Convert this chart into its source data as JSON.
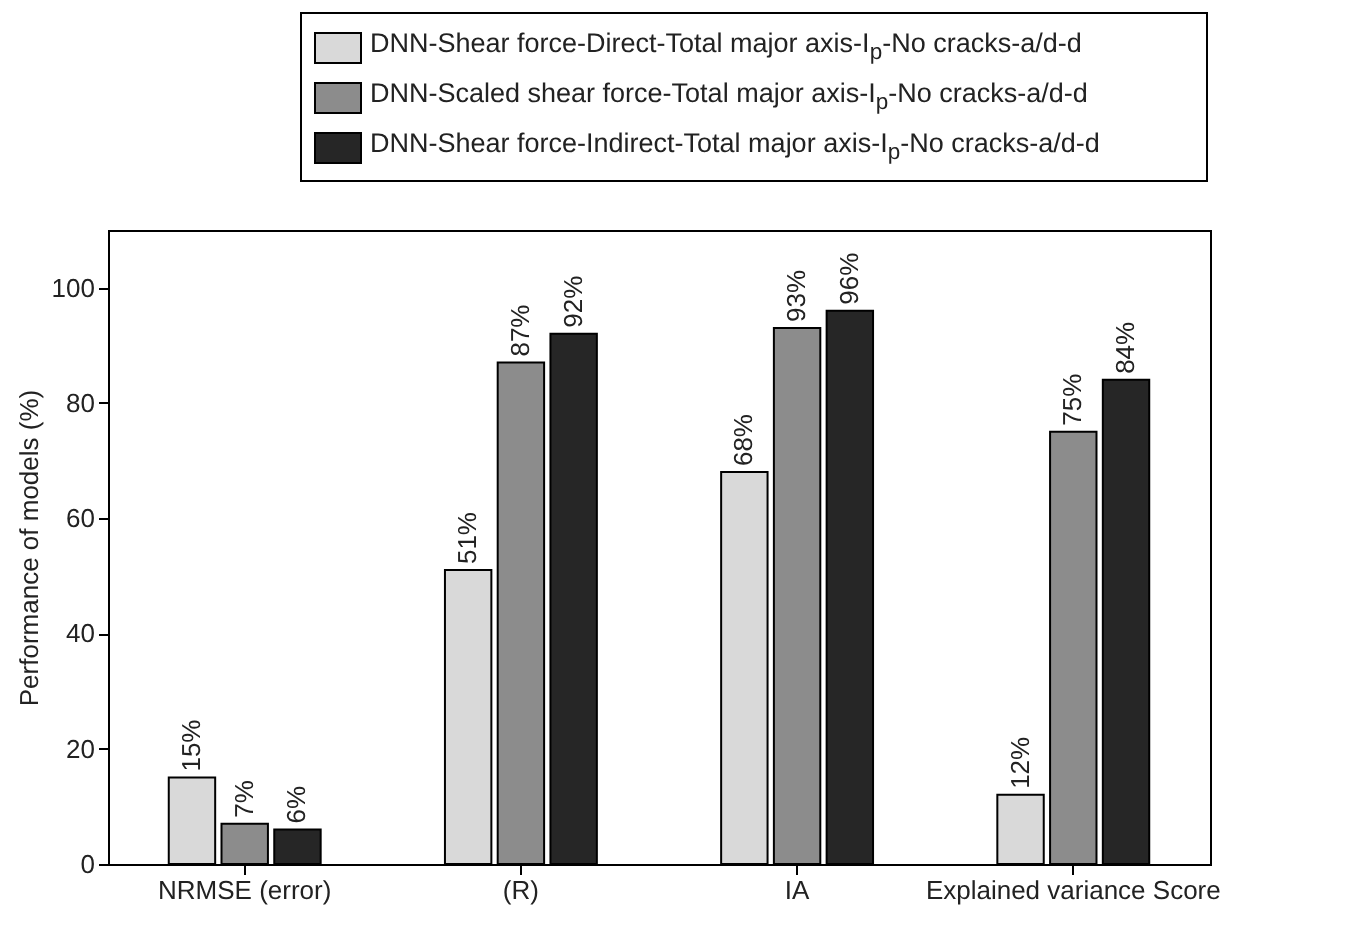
{
  "chart_data": {
    "type": "bar",
    "ylabel": "Performance of models (%)",
    "categories": [
      "NRMSE (error)",
      "(R)",
      "IA",
      "Explained variance Score"
    ],
    "series": [
      {
        "name": "DNN-Shear force-Direct-Total major axis-I$_{p}$-No cracks-a/d-d",
        "color": "#d9d9d9",
        "values": [
          15,
          51,
          68,
          12
        ],
        "value_labels": [
          "15%",
          "51%",
          "68%",
          "12%"
        ]
      },
      {
        "name": "DNN-Scaled shear force-Total major axis-I$_{p}$-No cracks-a/d-d",
        "color": "#8c8c8c",
        "values": [
          7,
          87,
          93,
          75
        ],
        "value_labels": [
          "7%",
          "87%",
          "93%",
          "75%"
        ]
      },
      {
        "name": "DNN-Shear force-Indirect-Total major axis-I$_{p}$-No cracks-a/d-d",
        "color": "#262626",
        "values": [
          6,
          92,
          96,
          84
        ],
        "value_labels": [
          "6%",
          "92%",
          "96%",
          "84%"
        ]
      }
    ],
    "ylim": [
      0,
      110
    ],
    "yticks": [
      0,
      20,
      40,
      60,
      80,
      100
    ],
    "grid": false,
    "legend": "top"
  }
}
